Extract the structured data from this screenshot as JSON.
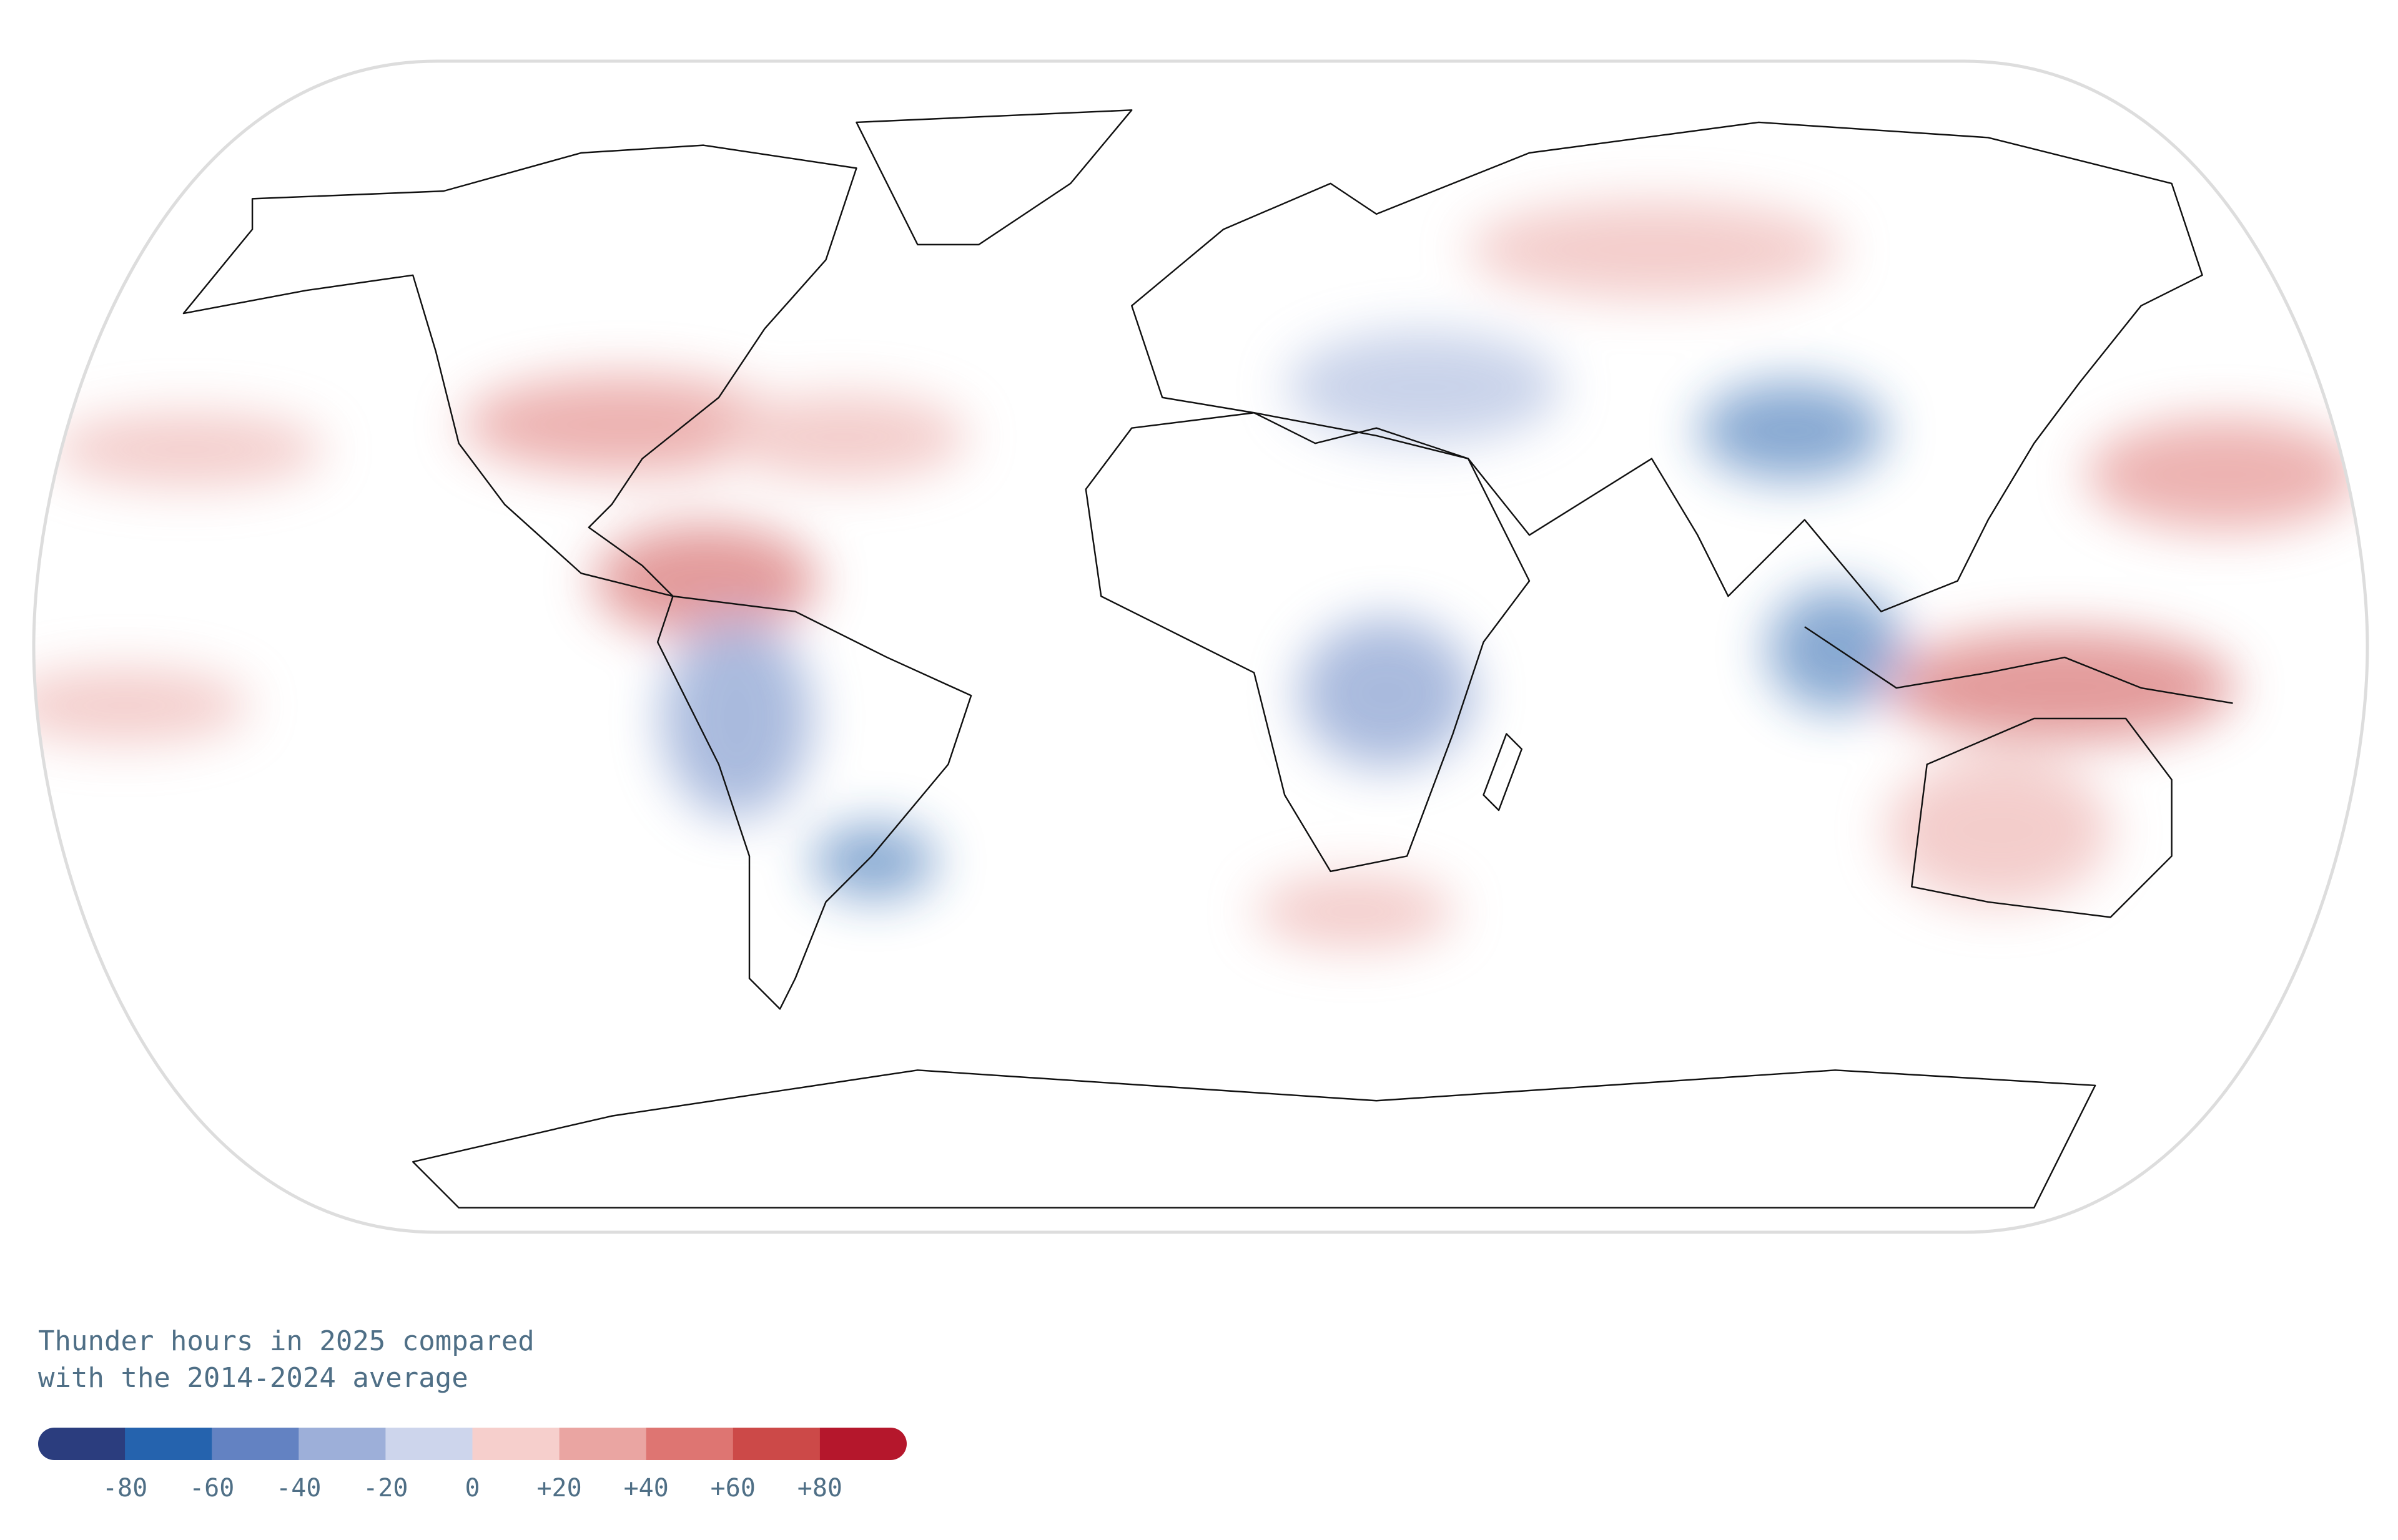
{
  "legend": {
    "title": [
      "Thunder hours in 2025 compared",
      "with the 2014-2024 average"
    ],
    "range": [
      -100,
      100
    ],
    "colors": [
      "#2b3d7e",
      "#2563ae",
      "#6382c2",
      "#9dafd9",
      "#cdd5ec",
      "#f6cfcc",
      "#eaa5a2",
      "#de7572",
      "#cc4948",
      "#b5172c"
    ],
    "ticks": [
      -80,
      -60,
      -40,
      -20,
      0,
      {
        "value": 20,
        "label": "+20"
      },
      {
        "value": 40,
        "label": "+40"
      },
      {
        "value": 60,
        "label": "+60"
      },
      {
        "value": 80,
        "label": "+80"
      }
    ]
  }
}
